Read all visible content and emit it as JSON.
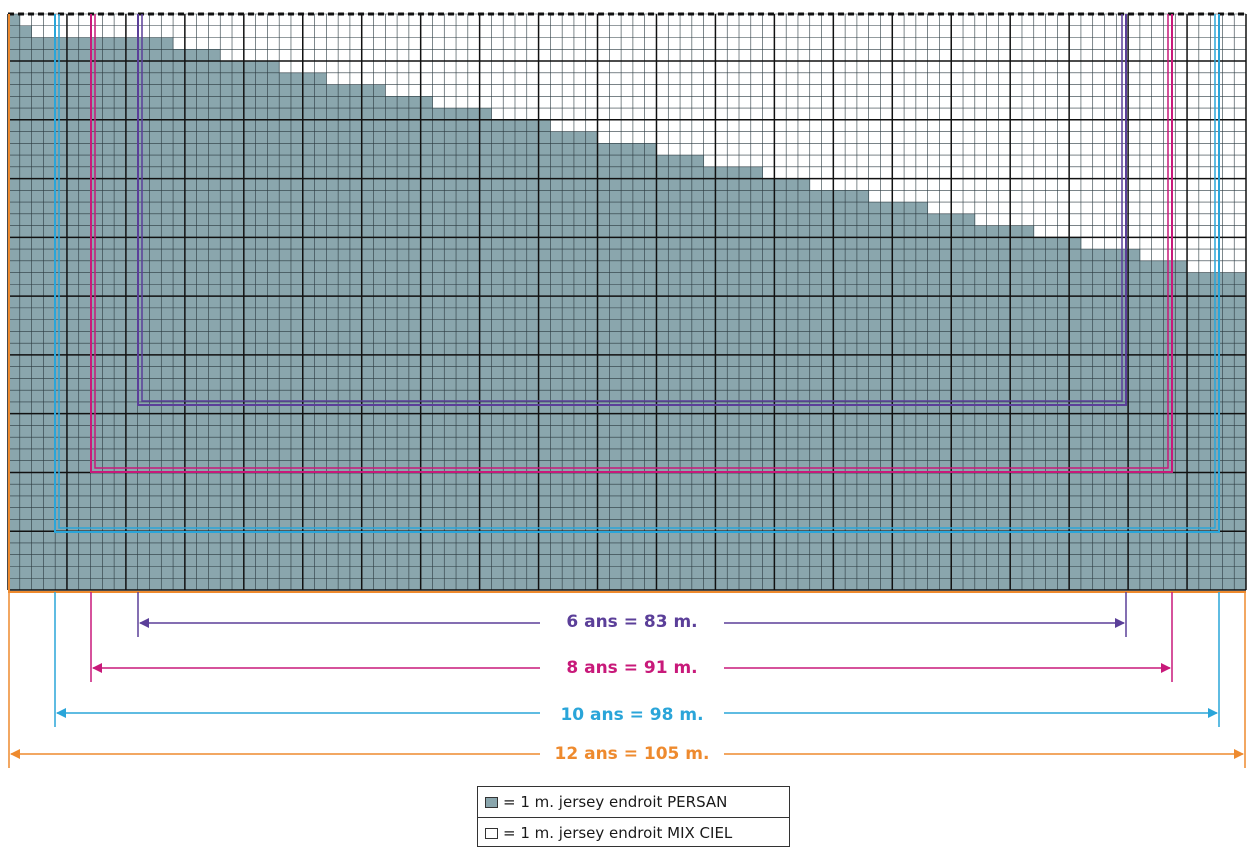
{
  "colors": {
    "persan": "#8aa6ad",
    "ciel": "#ffffff",
    "grid_fine": "#2b3a40",
    "grid_major": "#111111",
    "size_6": "#5b3f99",
    "size_8": "#c8197a",
    "size_10": "#2aa5d9",
    "size_12": "#ee8a2e"
  },
  "diagram": {
    "columns": 105,
    "rows": 49,
    "major_every": 5,
    "step_heights": [
      49,
      48,
      47,
      47,
      47,
      47,
      47,
      47,
      47,
      47,
      47,
      47,
      47,
      47,
      46,
      46,
      46,
      46,
      45,
      45,
      45,
      45,
      45,
      44,
      44,
      44,
      44,
      43,
      43,
      43,
      43,
      43,
      42,
      42,
      42,
      42,
      41,
      41,
      41,
      41,
      41,
      40,
      40,
      40,
      40,
      40,
      39,
      39,
      39,
      39,
      38,
      38,
      38,
      38,
      38,
      37,
      37,
      37,
      37,
      36,
      36,
      36,
      36,
      36,
      35,
      35,
      35,
      35,
      34,
      34,
      34,
      34,
      34,
      33,
      33,
      33,
      33,
      33,
      32,
      32,
      32,
      32,
      31,
      31,
      31,
      31,
      31,
      30,
      30,
      30,
      30,
      29,
      29,
      29,
      29,
      29,
      28,
      28,
      28,
      28,
      27,
      27,
      27,
      27,
      27
    ],
    "size_outlines": [
      {
        "size": "6 ans",
        "stitches": 83,
        "color_key": "size_6"
      },
      {
        "size": "8 ans",
        "stitches": 91,
        "color_key": "size_8"
      },
      {
        "size": "10 ans",
        "stitches": 98,
        "color_key": "size_10"
      },
      {
        "size": "12 ans",
        "stitches": 105,
        "color_key": "size_12"
      }
    ]
  },
  "dimensions": {
    "size_6": "6 ans = 83 m.",
    "size_8": "8 ans = 91 m.",
    "size_10": "10 ans = 98 m.",
    "size_12": "12 ans = 105 m."
  },
  "legend": {
    "persan": "= 1 m. jersey endroit PERSAN",
    "ciel": "= 1 m. jersey endroit MIX CIEL"
  }
}
